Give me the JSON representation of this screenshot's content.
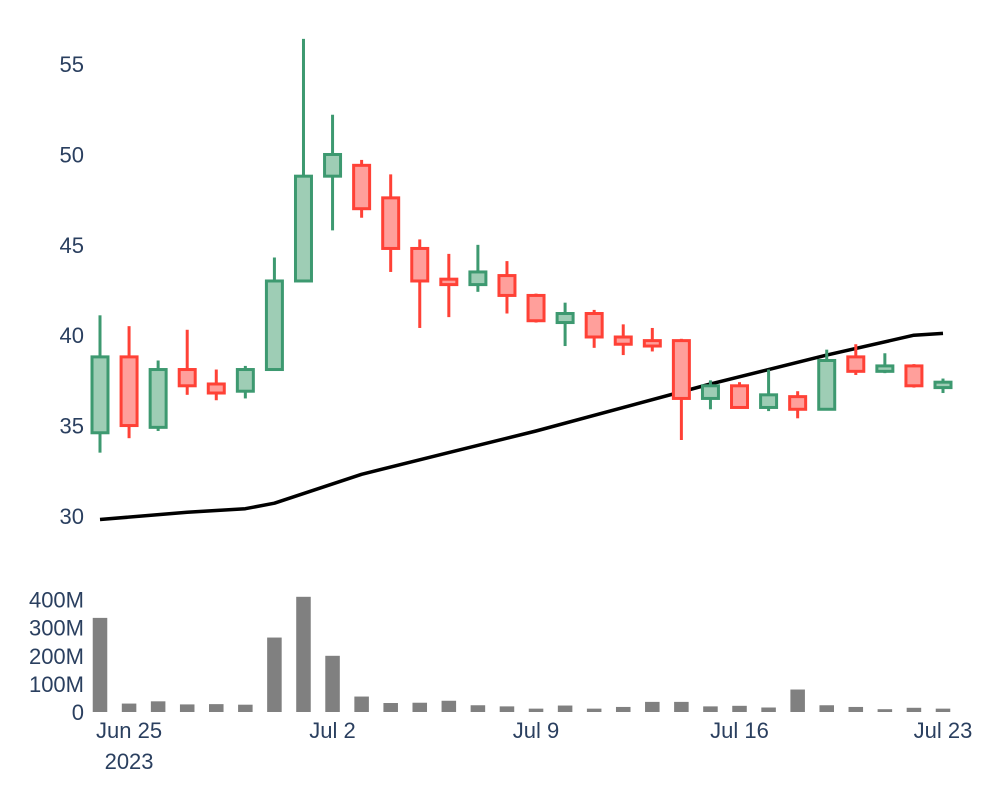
{
  "chart_data": {
    "type": "candlestick",
    "colors": {
      "increasing_line": "#3d9970",
      "increasing_fill": "#9ecdb5",
      "decreasing_line": "#ff4136",
      "decreasing_fill": "#ff9f9b",
      "sma_line": "#000000",
      "volume_bar": "#808080",
      "tick_text": "#2a3f5f"
    },
    "price_axis": {
      "range": [
        28.5,
        57
      ],
      "ticks": [
        30,
        35,
        40,
        45,
        50,
        55
      ],
      "tick_labels": [
        "30",
        "35",
        "40",
        "45",
        "50",
        "55"
      ]
    },
    "volume_axis": {
      "range": [
        0,
        420
      ],
      "ticks": [
        0,
        100,
        200,
        300,
        400
      ],
      "tick_labels": [
        "0",
        "100M",
        "200M",
        "300M",
        "400M"
      ]
    },
    "x_axis": {
      "range": [
        "2023-06-24",
        "2023-07-23"
      ],
      "ticks": [
        "2023-06-25",
        "2023-07-02",
        "2023-07-09",
        "2023-07-16",
        "2023-07-23"
      ],
      "tick_labels": [
        "Jun 25",
        "Jul 2",
        "Jul 9",
        "Jul 16",
        "Jul 23"
      ],
      "year_label": "2023"
    },
    "candles": [
      {
        "date": "2023-06-24",
        "open": 34.6,
        "high": 41.1,
        "low": 33.5,
        "close": 38.8
      },
      {
        "date": "2023-06-25",
        "open": 38.8,
        "high": 40.5,
        "low": 34.3,
        "close": 35.0
      },
      {
        "date": "2023-06-26",
        "open": 34.9,
        "high": 38.6,
        "low": 34.7,
        "close": 38.1
      },
      {
        "date": "2023-06-27",
        "open": 38.1,
        "high": 40.3,
        "low": 36.7,
        "close": 37.2
      },
      {
        "date": "2023-06-28",
        "open": 37.3,
        "high": 38.1,
        "low": 36.4,
        "close": 36.8
      },
      {
        "date": "2023-06-29",
        "open": 36.9,
        "high": 38.3,
        "low": 36.5,
        "close": 38.1
      },
      {
        "date": "2023-06-30",
        "open": 38.1,
        "high": 44.3,
        "low": 38.1,
        "close": 43.0
      },
      {
        "date": "2023-07-01",
        "open": 43.0,
        "high": 56.4,
        "low": 43.0,
        "close": 48.8
      },
      {
        "date": "2023-07-02",
        "open": 48.8,
        "high": 52.2,
        "low": 45.8,
        "close": 50.0
      },
      {
        "date": "2023-07-03",
        "open": 49.4,
        "high": 49.7,
        "low": 46.5,
        "close": 47.0
      },
      {
        "date": "2023-07-04",
        "open": 47.6,
        "high": 48.9,
        "low": 43.5,
        "close": 44.8
      },
      {
        "date": "2023-07-05",
        "open": 44.8,
        "high": 45.3,
        "low": 40.4,
        "close": 43.0
      },
      {
        "date": "2023-07-06",
        "open": 43.1,
        "high": 44.5,
        "low": 41.0,
        "close": 42.8
      },
      {
        "date": "2023-07-07",
        "open": 42.8,
        "high": 45.0,
        "low": 42.4,
        "close": 43.5
      },
      {
        "date": "2023-07-08",
        "open": 43.3,
        "high": 44.1,
        "low": 41.2,
        "close": 42.2
      },
      {
        "date": "2023-07-09",
        "open": 42.2,
        "high": 42.3,
        "low": 40.7,
        "close": 40.8
      },
      {
        "date": "2023-07-10",
        "open": 40.7,
        "high": 41.8,
        "low": 39.4,
        "close": 41.2
      },
      {
        "date": "2023-07-11",
        "open": 41.2,
        "high": 41.4,
        "low": 39.3,
        "close": 39.9
      },
      {
        "date": "2023-07-12",
        "open": 39.9,
        "high": 40.6,
        "low": 38.9,
        "close": 39.5
      },
      {
        "date": "2023-07-13",
        "open": 39.7,
        "high": 40.4,
        "low": 39.1,
        "close": 39.4
      },
      {
        "date": "2023-07-14",
        "open": 39.7,
        "high": 39.8,
        "low": 34.2,
        "close": 36.5
      },
      {
        "date": "2023-07-15",
        "open": 36.5,
        "high": 37.5,
        "low": 35.9,
        "close": 37.2
      },
      {
        "date": "2023-07-16",
        "open": 37.2,
        "high": 37.4,
        "low": 36.0,
        "close": 36.0
      },
      {
        "date": "2023-07-17",
        "open": 36.0,
        "high": 38.1,
        "low": 35.8,
        "close": 36.7
      },
      {
        "date": "2023-07-18",
        "open": 36.6,
        "high": 36.9,
        "low": 35.4,
        "close": 35.9
      },
      {
        "date": "2023-07-19",
        "open": 35.9,
        "high": 39.2,
        "low": 35.9,
        "close": 38.6
      },
      {
        "date": "2023-07-20",
        "open": 38.8,
        "high": 39.5,
        "low": 37.8,
        "close": 38.0
      },
      {
        "date": "2023-07-21",
        "open": 38.0,
        "high": 39.0,
        "low": 37.9,
        "close": 38.3
      },
      {
        "date": "2023-07-22",
        "open": 38.3,
        "high": 38.4,
        "low": 37.1,
        "close": 37.2
      },
      {
        "date": "2023-07-23",
        "open": 37.1,
        "high": 37.6,
        "low": 36.8,
        "close": 37.4
      }
    ],
    "sma_series": [
      {
        "date": "2023-06-24",
        "value": 29.8
      },
      {
        "date": "2023-06-27",
        "value": 30.2
      },
      {
        "date": "2023-06-29",
        "value": 30.4
      },
      {
        "date": "2023-06-30",
        "value": 30.7
      },
      {
        "date": "2023-07-03",
        "value": 32.3
      },
      {
        "date": "2023-07-06",
        "value": 33.5
      },
      {
        "date": "2023-07-08",
        "value": 34.3
      },
      {
        "date": "2023-07-09",
        "value": 34.7
      },
      {
        "date": "2023-07-15",
        "value": 37.3
      },
      {
        "date": "2023-07-19",
        "value": 38.9
      },
      {
        "date": "2023-07-22",
        "value": 40.0
      },
      {
        "date": "2023-07-23",
        "value": 40.1
      }
    ],
    "volume_millions": [
      335,
      30,
      38,
      27,
      28,
      26,
      265,
      410,
      200,
      55,
      32,
      33,
      40,
      24,
      20,
      12,
      23,
      12,
      18,
      36,
      36,
      20,
      22,
      16,
      80,
      24,
      18,
      10,
      15,
      12
    ]
  }
}
